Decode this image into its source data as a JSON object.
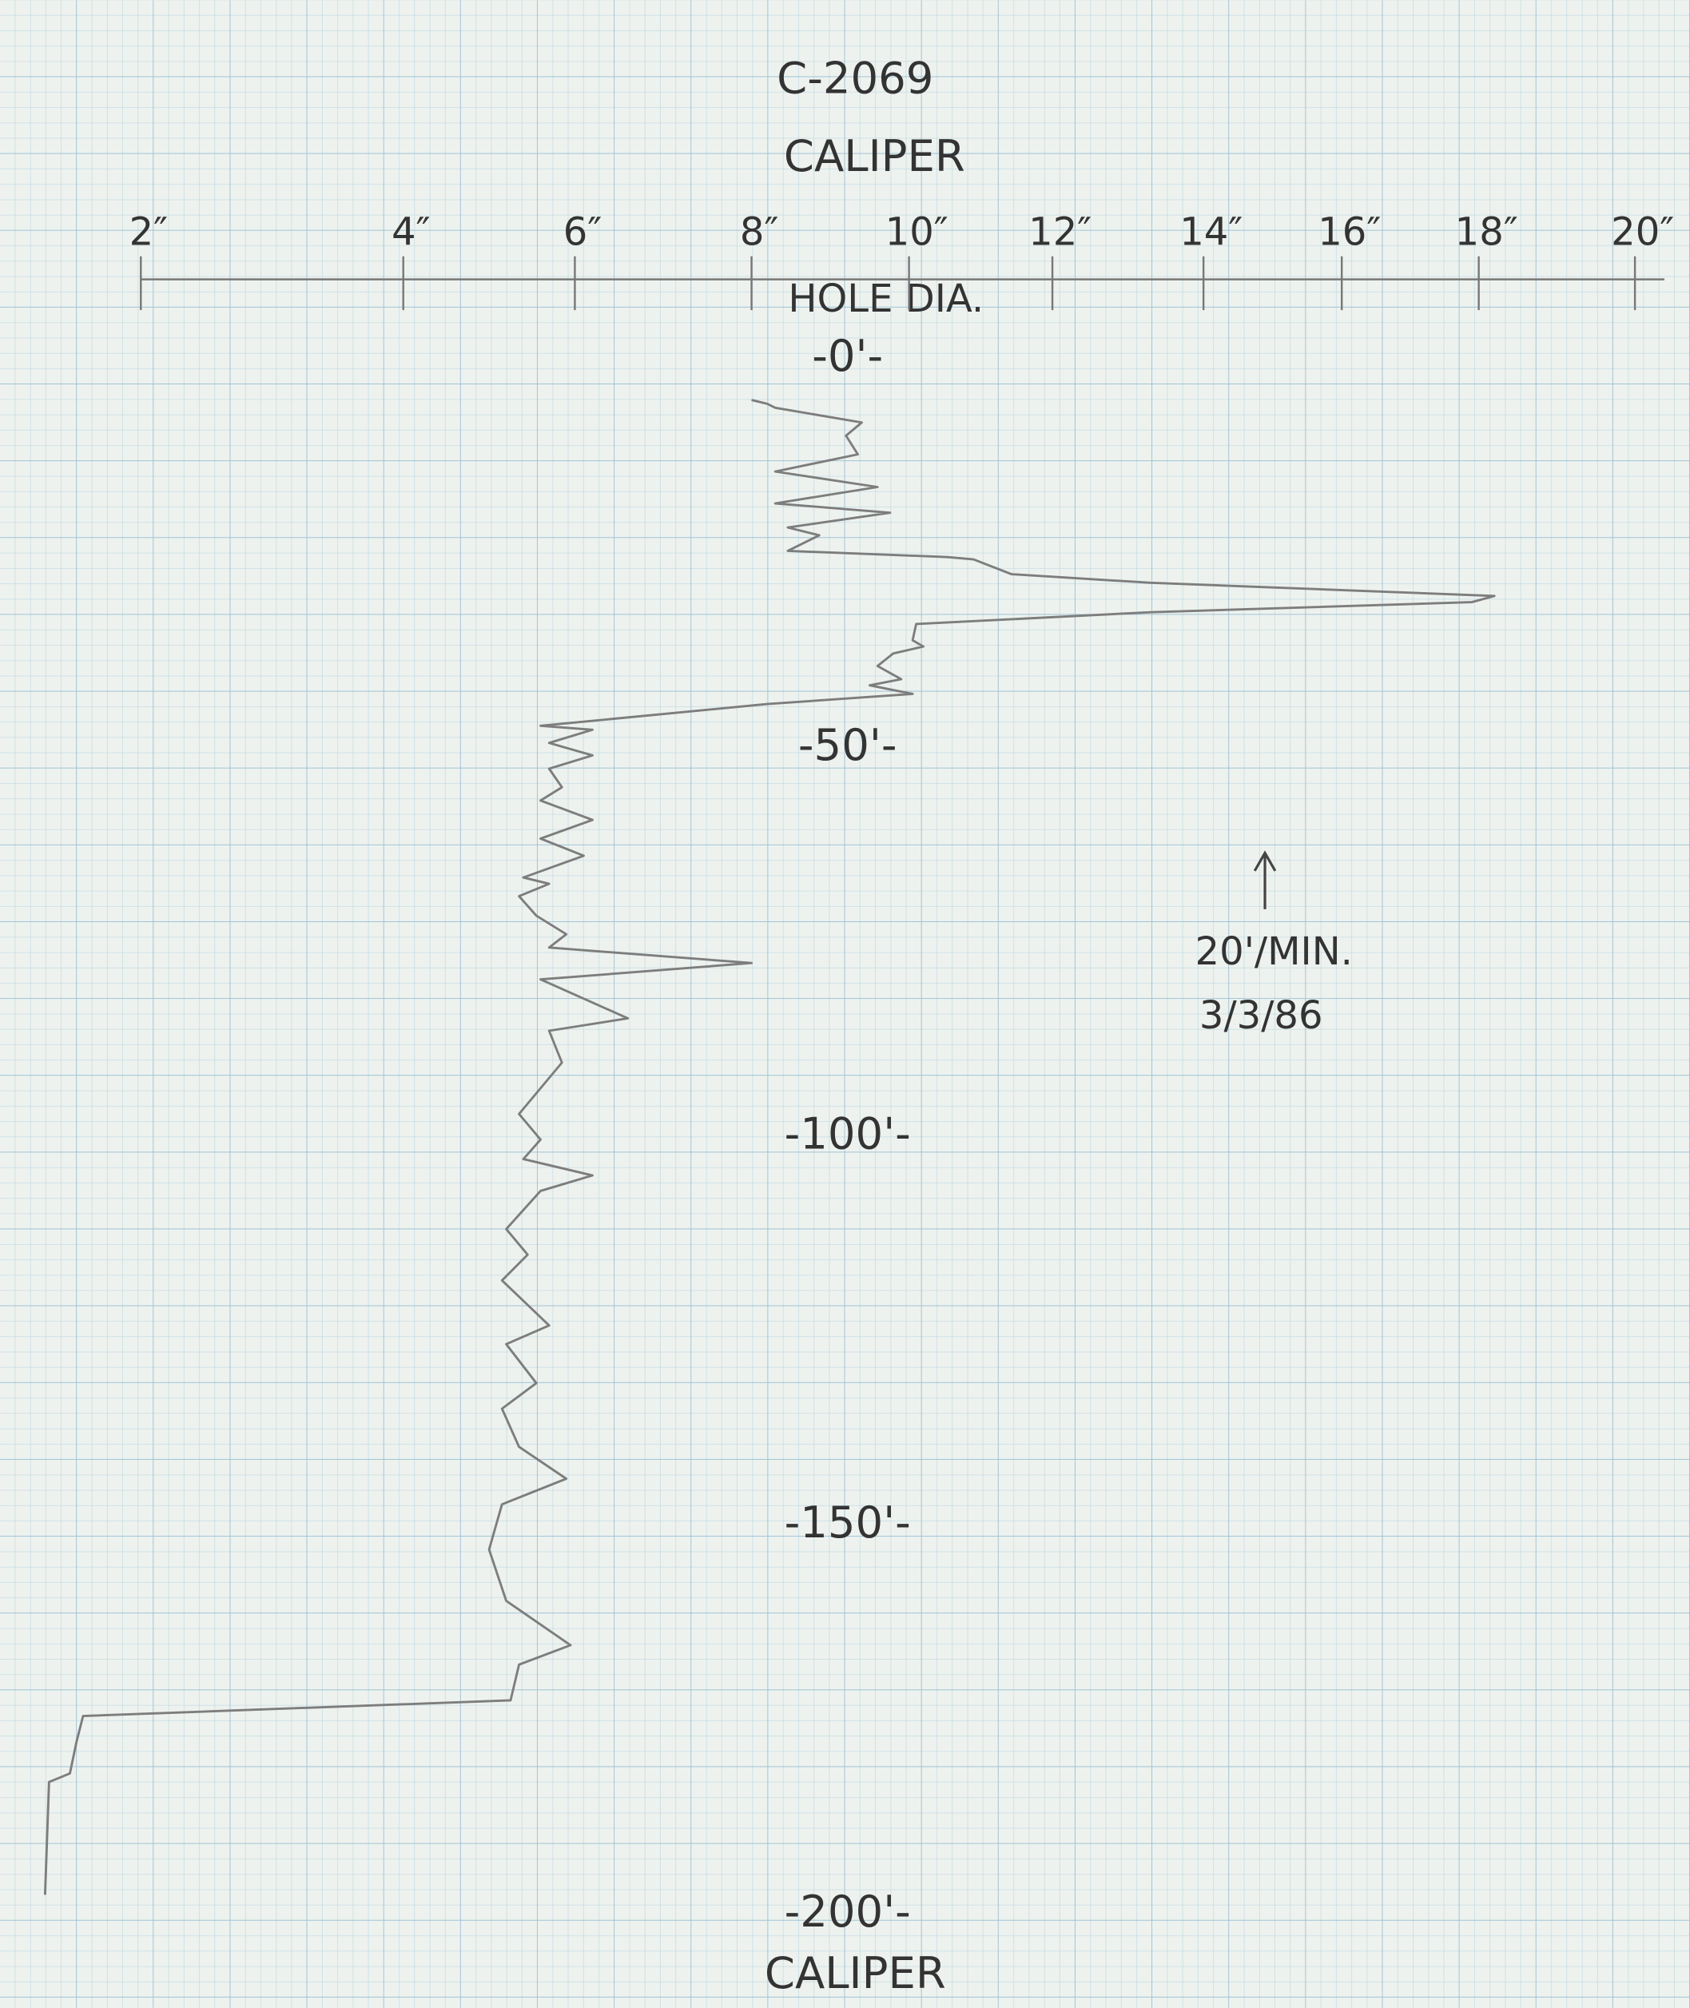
{
  "chart_data": {
    "type": "line",
    "title": "C-2069",
    "subtitle": "CALIPER",
    "x_label": "HOLE DIA.",
    "footer": "CALIPER",
    "annotations": [
      "20'/MIN.",
      "3/3/86"
    ],
    "color": "#7d7d7d",
    "xticks": [
      {
        "value": 2,
        "label": "2″"
      },
      {
        "value": 4,
        "label": "4″"
      },
      {
        "value": 6,
        "label": "6″"
      },
      {
        "value": 8,
        "label": "8″"
      },
      {
        "value": 10,
        "label": "10″"
      },
      {
        "value": 12,
        "label": "12″"
      },
      {
        "value": 14,
        "label": "14″"
      },
      {
        "value": 16,
        "label": "16″"
      },
      {
        "value": 18,
        "label": "18″"
      },
      {
        "value": 20,
        "label": "20″"
      }
    ],
    "ylim": [
      0,
      200
    ],
    "yticks": [
      {
        "value": 0,
        "label": "-0'-"
      },
      {
        "value": 50,
        "label": "-50'-"
      },
      {
        "value": 100,
        "label": "-100'-"
      },
      {
        "value": 150,
        "label": "-150'-"
      },
      {
        "value": 200,
        "label": "-200'-"
      }
    ],
    "depth": [
      5.3,
      5.8,
      6.3,
      8.2,
      9.9,
      12.3,
      14.5,
      16.5,
      18.6,
      19.8,
      21.7,
      22.7,
      24.7,
      25.5,
      25.8,
      27.7,
      28.8,
      30.5,
      31.3,
      32.6,
      34.1,
      36.2,
      37.0,
      37.9,
      39.5,
      41.2,
      42.0,
      43.1,
      44.4,
      47.2,
      47.7,
      49.4,
      51.0,
      52.7,
      55.1,
      56.8,
      59.3,
      61.7,
      63.9,
      66.7,
      67.5,
      69.1,
      71.6,
      74.0,
      75.7,
      77.7,
      79.8,
      84.8,
      86.4,
      90.5,
      97.1,
      100.4,
      102.9,
      105.0,
      107.0,
      111.9,
      115.2,
      118.5,
      124.3,
      126.7,
      131.7,
      135.0,
      139.9,
      144.0,
      147.3,
      153.1,
      159.7,
      165.4,
      167.9,
      172.5,
      174.5,
      177.8,
      181.9,
      183.0,
      197.5
    ],
    "values": [
      8.0,
      8.2,
      8.3,
      9.4,
      9.2,
      9.35,
      8.3,
      9.6,
      8.3,
      9.76,
      8.46,
      8.86,
      8.46,
      10.54,
      10.9,
      11.43,
      13.3,
      18.2,
      17.9,
      13.3,
      10.1,
      10.05,
      10.2,
      9.8,
      9.6,
      9.9,
      9.5,
      10.05,
      8.2,
      5.6,
      6.2,
      5.7,
      6.2,
      5.7,
      5.85,
      5.6,
      6.2,
      5.6,
      6.1,
      5.4,
      5.7,
      5.35,
      5.55,
      5.9,
      5.7,
      8.0,
      5.6,
      6.6,
      5.7,
      5.85,
      5.35,
      5.6,
      5.4,
      6.2,
      5.6,
      5.2,
      5.45,
      5.15,
      5.7,
      5.2,
      5.55,
      5.15,
      5.35,
      5.9,
      5.15,
      5.0,
      5.2,
      5.95,
      5.35,
      5.25,
      1.56,
      1.51,
      1.46,
      1.3,
      1.27
    ]
  }
}
